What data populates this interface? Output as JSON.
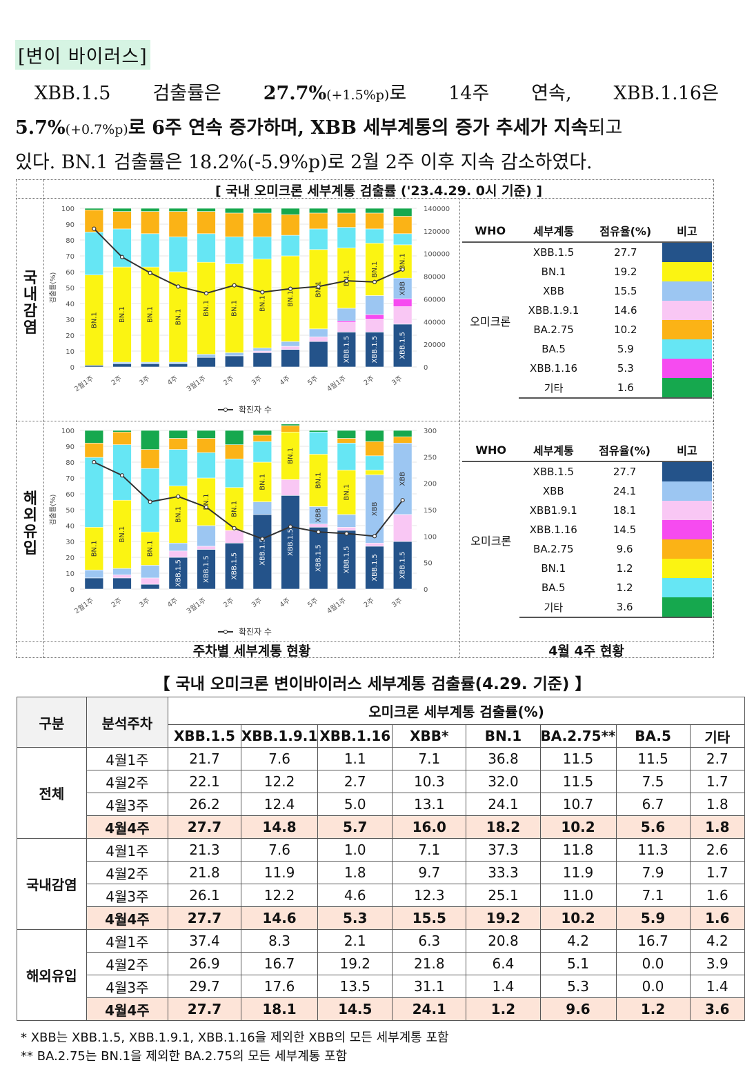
{
  "section_title": "[변이 바이러스]",
  "para": {
    "l1": [
      "XBB.1.5",
      "검출률은",
      "27.7%",
      "(+1.5%p)",
      "로",
      "14주",
      "연속,",
      "XBB.1.16은"
    ],
    "l2a": "5.7%",
    "l2b": "(+0.7%p)",
    "l2c": "로 6주 연속 증가하며, XBB 세부계통의 증가 추세가 지속",
    "l2d": "되고",
    "l3": "있다. BN.1 검출률은 18.2%(-5.9%p)로 2월 2주 이후 지속 감소하였다."
  },
  "figure": {
    "title": "[ 국내 오미크론 세부계통 검출률 ('23.4.29. 0시 기준) ]",
    "row1_label": "국내감염",
    "row2_label": "해외유입",
    "bottom_left": "주차별 세부계통 현황",
    "bottom_right": "4월 4주 현황",
    "line_legend": "확진자 수",
    "y_axis_label": "검출률(%)",
    "colors": {
      "XBB.1.5": "#24538a",
      "XBB.1.9.1": "#f9c7f4",
      "XBB.1.16": "#f64bf0",
      "XBB": "#9cc6f2",
      "BN.1": "#fbf412",
      "BA.2.75": "#fbb316",
      "BA.5": "#66e6f4",
      "other": "#16a84e"
    }
  },
  "chart_data": [
    {
      "type": "bar",
      "title": "국내감염",
      "stacked": true,
      "ylabel": "검출률(%)",
      "ylim": [
        0,
        100
      ],
      "y2lim": [
        0,
        140000
      ],
      "y2ticks": [
        "0",
        "20000",
        "40000",
        "60000",
        "80000",
        "100000",
        "120000",
        "140000"
      ],
      "yticks": [
        "0",
        "10",
        "20",
        "30",
        "40",
        "50",
        "60",
        "70",
        "80",
        "90",
        "100"
      ],
      "categories": [
        "2월1주",
        "2주",
        "3주",
        "4주",
        "3월1주",
        "2주",
        "3주",
        "4주",
        "5주",
        "4월1주",
        "2주",
        "3주"
      ],
      "series": [
        {
          "name": "XBB.1.5",
          "values": [
            1,
            2,
            2,
            2,
            6,
            7,
            9,
            11,
            16,
            22,
            22,
            27
          ]
        },
        {
          "name": "XBB.1.9.1",
          "values": [
            0,
            0,
            0,
            0,
            0,
            0,
            1,
            2,
            3,
            6,
            8,
            11
          ]
        },
        {
          "name": "XBB.1.16",
          "values": [
            0,
            0,
            0,
            0,
            0,
            0,
            0,
            0,
            0,
            1,
            3,
            5
          ]
        },
        {
          "name": "XBB",
          "values": [
            0,
            1,
            1,
            1,
            2,
            2,
            2,
            3,
            5,
            8,
            12,
            13
          ]
        },
        {
          "name": "BN.1",
          "values": [
            57,
            60,
            60,
            57,
            58,
            56,
            56,
            54,
            50,
            38,
            33,
            21
          ]
        },
        {
          "name": "BA.5",
          "values": [
            27,
            24,
            21,
            22,
            18,
            17,
            14,
            13,
            13,
            13,
            9,
            7
          ]
        },
        {
          "name": "BA.2.75",
          "values": [
            14,
            11,
            14,
            16,
            14,
            15,
            15,
            13,
            10,
            9,
            10,
            11
          ]
        },
        {
          "name": "other",
          "values": [
            1,
            2,
            2,
            2,
            2,
            3,
            3,
            4,
            3,
            3,
            3,
            5
          ]
        }
      ],
      "bar_labels": [
        [
          "BN.1"
        ],
        [
          "BN.1"
        ],
        [
          "BN.1"
        ],
        [
          "BN.1"
        ],
        [
          "BN.1"
        ],
        [
          "BN.1"
        ],
        [
          "BN.1"
        ],
        [
          "BN.1"
        ],
        [
          "BN.1"
        ],
        [
          "XBB.1.5",
          "BN.1"
        ],
        [
          "XBB.1.5",
          "BN.1"
        ],
        [
          "XBB.1.5",
          "XBB",
          "BN.1"
        ]
      ],
      "line": {
        "name": "확진자 수",
        "values": [
          122000,
          97000,
          83000,
          71000,
          65000,
          72000,
          66000,
          69000,
          71000,
          76000,
          75000,
          86000
        ]
      }
    },
    {
      "type": "bar",
      "title": "해외유입",
      "stacked": true,
      "ylabel": "검출률(%)",
      "ylim": [
        0,
        100
      ],
      "y2lim": [
        0,
        300
      ],
      "y2ticks": [
        "0",
        "50",
        "100",
        "150",
        "200",
        "250",
        "300"
      ],
      "yticks": [
        "0",
        "10",
        "20",
        "30",
        "40",
        "50",
        "60",
        "70",
        "80",
        "90",
        "100"
      ],
      "categories": [
        "2월1주",
        "2주",
        "3주",
        "4주",
        "3월1주",
        "2주",
        "3주",
        "4주",
        "5주",
        "4월1주",
        "2주",
        "3주"
      ],
      "series": [
        {
          "name": "XBB.1.5",
          "values": [
            7,
            7,
            3,
            20,
            25,
            29,
            47,
            59,
            39,
            37,
            27,
            30
          ]
        },
        {
          "name": "XBB.1.9.1",
          "values": [
            0,
            2,
            4,
            4,
            2,
            8,
            0,
            10,
            2,
            2,
            2,
            17
          ]
        },
        {
          "name": "XBB.1.16",
          "values": [
            0,
            0,
            0,
            0,
            0,
            0,
            0,
            0,
            0,
            0,
            0,
            0
          ]
        },
        {
          "name": "XBB",
          "values": [
            5,
            4,
            8,
            5,
            13,
            0,
            8,
            0,
            11,
            8,
            43,
            45
          ]
        },
        {
          "name": "BN.1",
          "values": [
            27,
            43,
            21,
            36,
            30,
            27,
            25,
            30,
            33,
            28,
            3,
            0
          ]
        },
        {
          "name": "BA.5",
          "values": [
            44,
            35,
            40,
            23,
            16,
            18,
            13,
            0,
            14,
            17,
            9,
            0
          ]
        },
        {
          "name": "BA.2.75",
          "values": [
            9,
            8,
            12,
            7,
            9,
            9,
            4,
            4,
            0,
            3,
            9,
            4
          ]
        },
        {
          "name": "other",
          "values": [
            8,
            1,
            12,
            5,
            5,
            9,
            3,
            1,
            1,
            5,
            7,
            4
          ]
        }
      ],
      "bar_labels": [
        [
          "BN.1"
        ],
        [
          "BN.1"
        ],
        [
          "BN.1"
        ],
        [
          "XBB.1.5",
          "BN.1"
        ],
        [
          "XBB.1.5",
          "BN.1"
        ],
        [
          "XBB.1.5",
          "BN.1"
        ],
        [
          "XBB.1.5",
          "BN.1"
        ],
        [
          "XBB.1.5",
          "BN.1"
        ],
        [
          "XBB.1.5",
          "XBB",
          "BN.1"
        ],
        [
          "XBB.1.5",
          "BN.1"
        ],
        [
          "XBB.1.5",
          "XBB"
        ],
        [
          "XBB.1.5",
          "XBB"
        ]
      ],
      "line": {
        "name": "확진자 수",
        "values": [
          240,
          215,
          165,
          175,
          155,
          115,
          95,
          118,
          108,
          105,
          100,
          168
        ]
      }
    }
  ],
  "legend_tables": [
    {
      "headers": [
        "WHO",
        "세부계통",
        "점유율(%)",
        "비고"
      ],
      "who": "오미크론",
      "rows": [
        {
          "name": "XBB.1.5",
          "pct": "27.7",
          "color": "#24538a"
        },
        {
          "name": "BN.1",
          "pct": "19.2",
          "color": "#fbf412"
        },
        {
          "name": "XBB",
          "pct": "15.5",
          "color": "#9cc6f2"
        },
        {
          "name": "XBB.1.9.1",
          "pct": "14.6",
          "color": "#f9c7f4"
        },
        {
          "name": "BA.2.75",
          "pct": "10.2",
          "color": "#fbb316"
        },
        {
          "name": "BA.5",
          "pct": "5.9",
          "color": "#66e6f4"
        },
        {
          "name": "XBB.1.16",
          "pct": "5.3",
          "color": "#f64bf0"
        },
        {
          "name": "기타",
          "pct": "1.6",
          "color": "#16a84e"
        }
      ]
    },
    {
      "headers": [
        "WHO",
        "세부계통",
        "점유율(%)",
        "비고"
      ],
      "who": "오미크론",
      "rows": [
        {
          "name": "XBB.1.5",
          "pct": "27.7",
          "color": "#24538a"
        },
        {
          "name": "XBB",
          "pct": "24.1",
          "color": "#9cc6f2"
        },
        {
          "name": "XBB1.9.1",
          "pct": "18.1",
          "color": "#f9c7f4"
        },
        {
          "name": "XBB.1.16",
          "pct": "14.5",
          "color": "#f64bf0"
        },
        {
          "name": "BA.2.75",
          "pct": "9.6",
          "color": "#fbb316"
        },
        {
          "name": "BN.1",
          "pct": "1.2",
          "color": "#fbf412"
        },
        {
          "name": "BA.5",
          "pct": "1.2",
          "color": "#66e6f4"
        },
        {
          "name": "기타",
          "pct": "3.6",
          "color": "#16a84e"
        }
      ]
    }
  ],
  "table": {
    "title": "【 국내 오미크론 변이바이러스 세부계통 검출률(4.29. 기준) 】",
    "h_group": "구분",
    "h_week": "분석주차",
    "h_span": "오미크론 세부계통 검출률(%)",
    "columns": [
      "XBB.1.5",
      "XBB.1.9.1",
      "XBB.1.16",
      "XBB*",
      "BN.1",
      "BA.2.75**",
      "BA.5",
      "기타"
    ],
    "groups": [
      {
        "name": "전체",
        "rows": [
          {
            "week": "4월1주",
            "values": [
              "21.7",
              "7.6",
              "1.1",
              "7.1",
              "36.8",
              "11.5",
              "11.5",
              "2.7"
            ]
          },
          {
            "week": "4월2주",
            "values": [
              "22.1",
              "12.2",
              "2.7",
              "10.3",
              "32.0",
              "11.5",
              "7.5",
              "1.7"
            ]
          },
          {
            "week": "4월3주",
            "values": [
              "26.2",
              "12.4",
              "5.0",
              "13.1",
              "24.1",
              "10.7",
              "6.7",
              "1.8"
            ]
          },
          {
            "week": "4월4주",
            "values": [
              "27.7",
              "14.8",
              "5.7",
              "16.0",
              "18.2",
              "10.2",
              "5.6",
              "1.8"
            ],
            "highlight": true
          }
        ]
      },
      {
        "name": "국내감염",
        "rows": [
          {
            "week": "4월1주",
            "values": [
              "21.3",
              "7.6",
              "1.0",
              "7.1",
              "37.3",
              "11.8",
              "11.3",
              "2.6"
            ]
          },
          {
            "week": "4월2주",
            "values": [
              "21.8",
              "11.9",
              "1.8",
              "9.7",
              "33.3",
              "11.9",
              "7.9",
              "1.7"
            ]
          },
          {
            "week": "4월3주",
            "values": [
              "26.1",
              "12.2",
              "4.6",
              "12.3",
              "25.1",
              "11.0",
              "7.1",
              "1.6"
            ]
          },
          {
            "week": "4월4주",
            "values": [
              "27.7",
              "14.6",
              "5.3",
              "15.5",
              "19.2",
              "10.2",
              "5.9",
              "1.6"
            ],
            "highlight": true
          }
        ]
      },
      {
        "name": "해외유입",
        "rows": [
          {
            "week": "4월1주",
            "values": [
              "37.4",
              "8.3",
              "2.1",
              "6.3",
              "20.8",
              "4.2",
              "16.7",
              "4.2"
            ]
          },
          {
            "week": "4월2주",
            "values": [
              "26.9",
              "16.7",
              "19.2",
              "21.8",
              "6.4",
              "5.1",
              "0.0",
              "3.9"
            ]
          },
          {
            "week": "4월3주",
            "values": [
              "29.7",
              "17.6",
              "13.5",
              "31.1",
              "1.4",
              "5.3",
              "0.0",
              "1.4"
            ]
          },
          {
            "week": "4월4주",
            "values": [
              "27.7",
              "18.1",
              "14.5",
              "24.1",
              "1.2",
              "9.6",
              "1.2",
              "3.6"
            ],
            "highlight": true
          }
        ]
      }
    ],
    "footnotes": [
      "* XBB는 XBB.1.5, XBB.1.9.1, XBB.1.16을 제외한 XBB의 모든 세부계통 포함",
      "** BA.2.75는 BN.1을 제외한 BA.2.75의 모든 세부계통 포함"
    ]
  }
}
